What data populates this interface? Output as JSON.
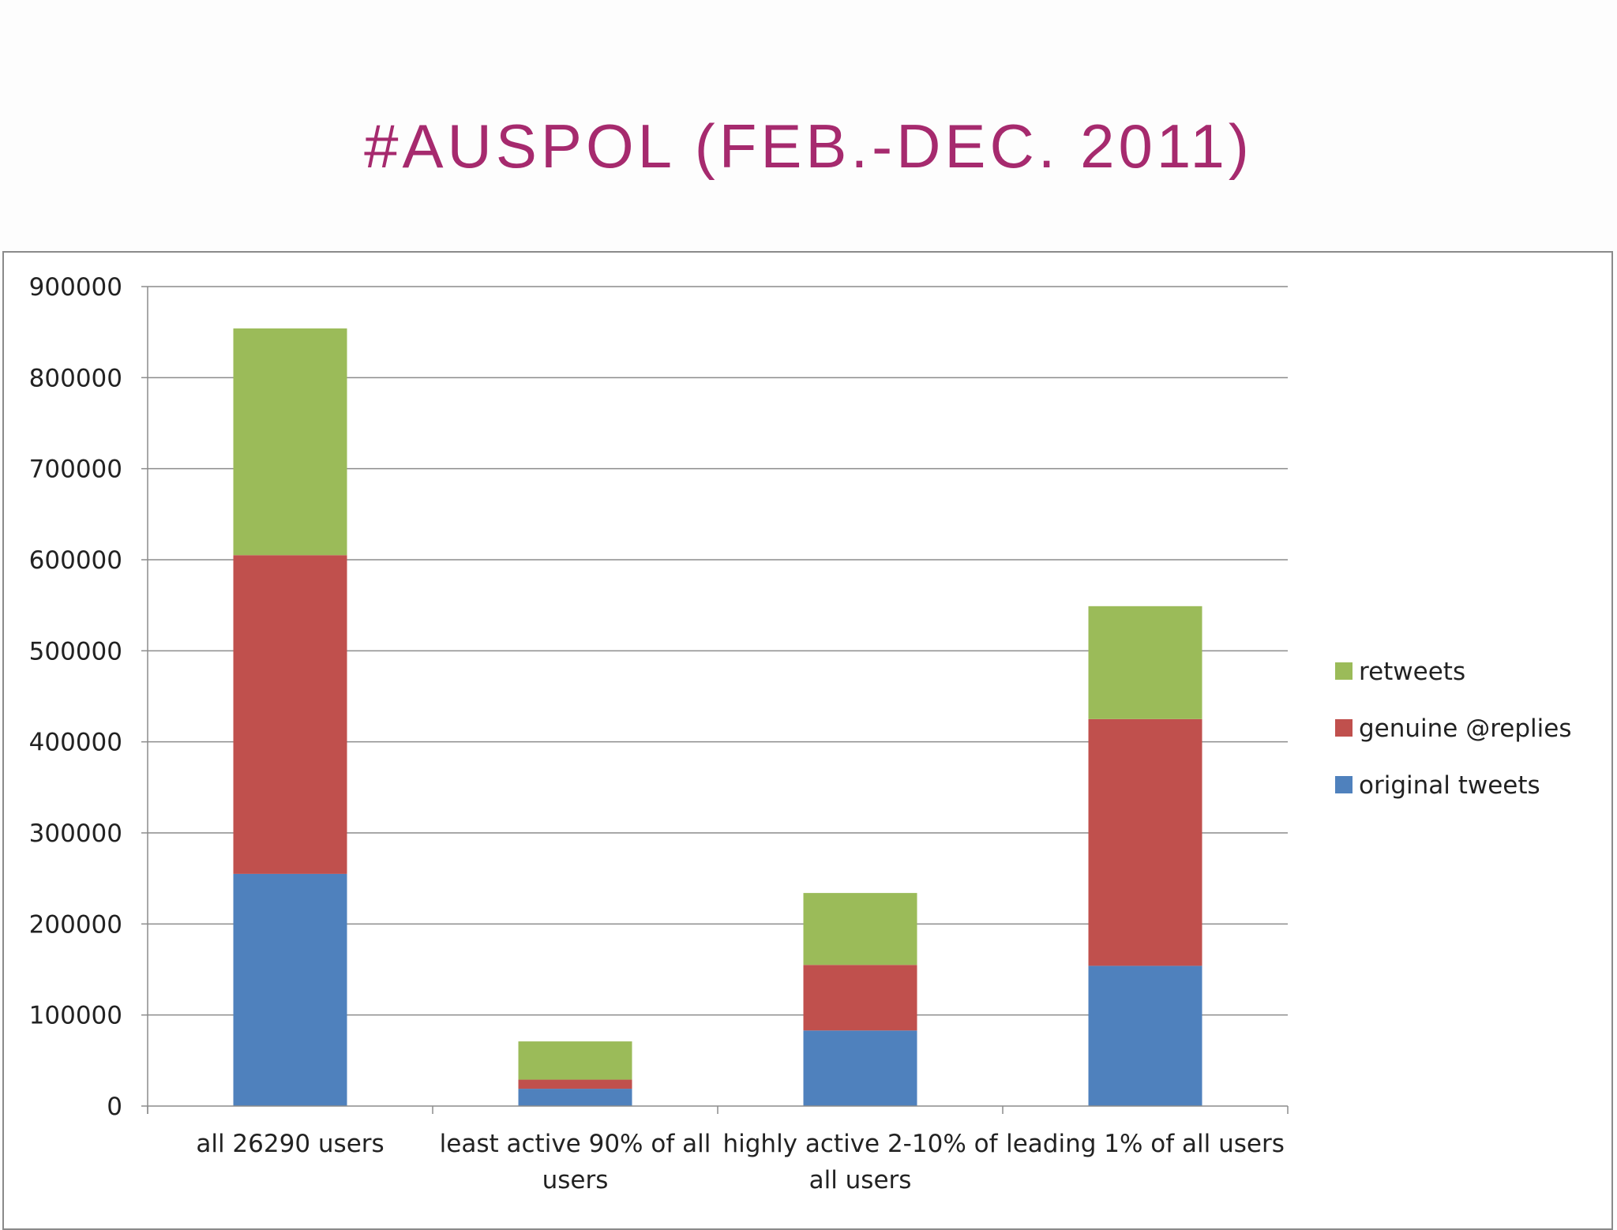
{
  "slide": {
    "title": "#AUSPOL (FEB.-DEC. 2011)"
  },
  "colors": {
    "title": "#a62a6e",
    "original_tweets": "#4f81bd",
    "genuine_replies": "#c0504d",
    "retweets": "#9bbb59"
  },
  "chart_data": {
    "type": "bar",
    "stacked": true,
    "categories": [
      [
        "all 26290 users"
      ],
      [
        "least active 90% of all",
        "users"
      ],
      [
        "highly active 2-10% of",
        "all users"
      ],
      [
        "leading 1% of all users"
      ]
    ],
    "series": [
      {
        "name": "original tweets",
        "color": "#4f81bd",
        "values": [
          255000,
          19000,
          83000,
          154000
        ]
      },
      {
        "name": "genuine @replies",
        "color": "#c0504d",
        "values": [
          350000,
          10000,
          72000,
          271000
        ]
      },
      {
        "name": "retweets",
        "color": "#9bbb59",
        "values": [
          249000,
          42000,
          79000,
          124000
        ]
      }
    ],
    "ylim": [
      0,
      900000
    ],
    "yticks": [
      0,
      100000,
      200000,
      300000,
      400000,
      500000,
      600000,
      700000,
      800000,
      900000
    ],
    "grid": true,
    "legend_position": "right",
    "legend_order": [
      "retweets",
      "genuine @replies",
      "original tweets"
    ],
    "title": "",
    "xlabel": "",
    "ylabel": ""
  }
}
